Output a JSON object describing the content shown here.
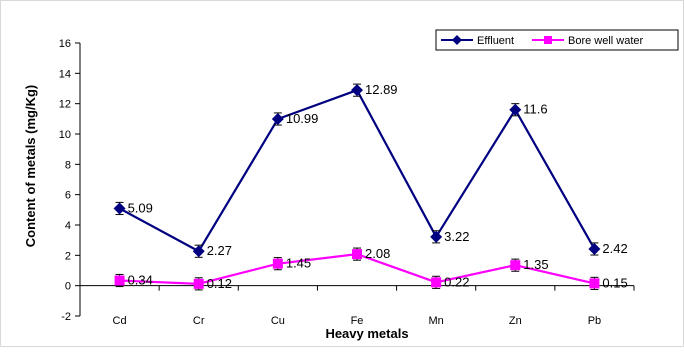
{
  "chart_data": {
    "type": "line",
    "categories": [
      "Cd",
      "Cr",
      "Cu",
      "Fe",
      "Mn",
      "Zn",
      "Pb"
    ],
    "series": [
      {
        "name": "Effluent",
        "values": [
          5.09,
          2.27,
          10.99,
          12.89,
          3.22,
          11.6,
          2.42
        ],
        "labels": [
          "5.09",
          "2.27",
          "10.99",
          "12.89",
          "3.22",
          "11.6",
          "2.42"
        ],
        "error": 0.4,
        "color": "#000080",
        "marker": "diamond"
      },
      {
        "name": "Bore well water",
        "values": [
          0.34,
          0.12,
          1.45,
          2.08,
          0.22,
          1.35,
          0.15
        ],
        "labels": [
          "0.34",
          "0.12",
          "1.45",
          "2.08",
          "0.22",
          "1.35",
          "0.15"
        ],
        "error": 0.4,
        "color": "#ff00ff",
        "marker": "square"
      }
    ],
    "xlabel": "Heavy metals",
    "ylabel": "Content of metals (mg/Kg)",
    "ylim": [
      -2,
      16
    ],
    "yticks": [
      -2,
      0,
      2,
      4,
      6,
      8,
      10,
      12,
      14,
      16
    ],
    "grid": false,
    "legend_position": "top-right",
    "error_bar_color": "#000000"
  }
}
